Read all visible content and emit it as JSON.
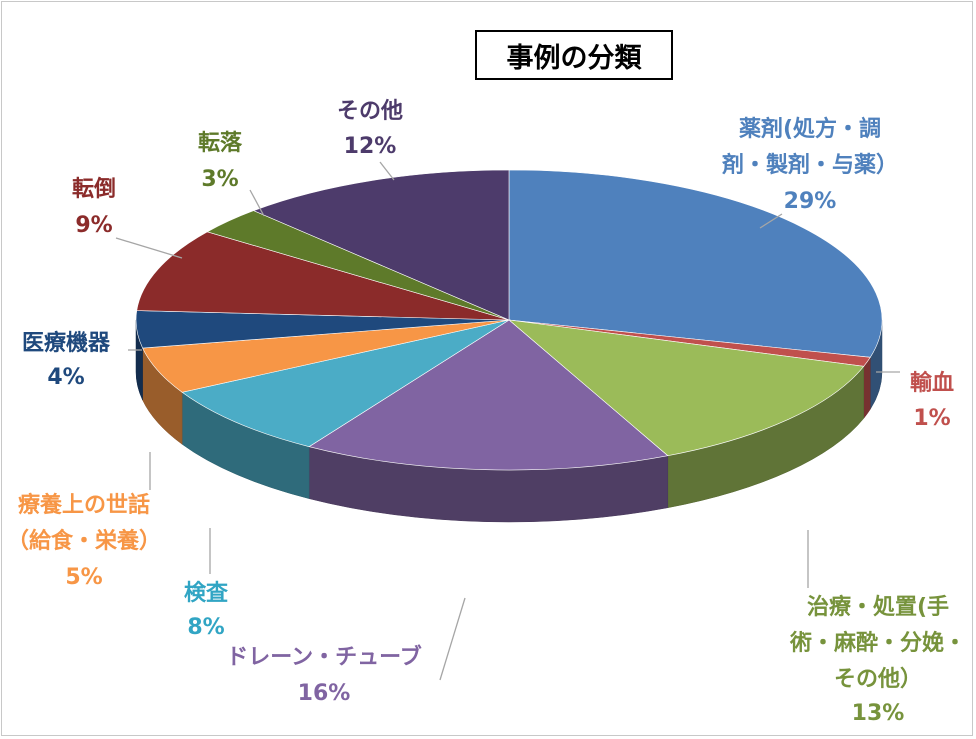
{
  "chart_data": {
    "type": "pie",
    "title": "事例の分類",
    "slices": [
      {
        "label": "薬剤(処方・調剤・製剤・与薬）",
        "value": 29,
        "pct": "29%",
        "color": "#4f81bd"
      },
      {
        "label": "輸血",
        "value": 1,
        "pct": "1%",
        "color": "#c0504d"
      },
      {
        "label": "治療・処置(手術・麻酔・分娩・その他）",
        "value": 13,
        "pct": "13%",
        "color": "#9bbb59"
      },
      {
        "label": "ドレーン・チューブ",
        "value": 16,
        "pct": "16%",
        "color": "#8064a2"
      },
      {
        "label": "検査",
        "value": 8,
        "pct": "8%",
        "color": "#4bacc6"
      },
      {
        "label": "療養上の世話（給食・栄養）",
        "value": 5,
        "pct": "5%",
        "color": "#f79646"
      },
      {
        "label": "医療機器",
        "value": 4,
        "pct": "4%",
        "color": "#1f497d"
      },
      {
        "label": "転倒",
        "value": 9,
        "pct": "9%",
        "color": "#8b2b2a"
      },
      {
        "label": "転落",
        "value": 3,
        "pct": "3%",
        "color": "#5e7a2a"
      },
      {
        "label": "その他",
        "value": 12,
        "pct": "12%",
        "color": "#4d3b6b"
      }
    ]
  }
}
